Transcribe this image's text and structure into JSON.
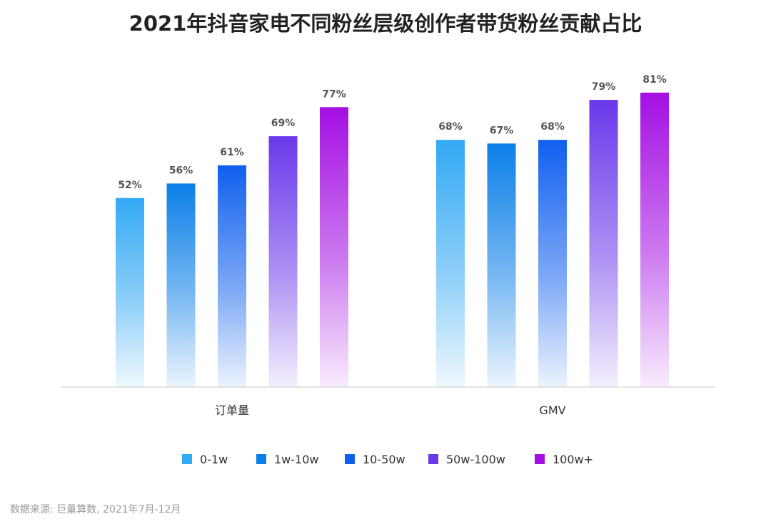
{
  "chart_data": {
    "type": "bar",
    "title": "2021年抖音家电不同粉丝层级创作者带货粉丝贡献占比",
    "categories": [
      "订单量",
      "GMV"
    ],
    "series": [
      {
        "name": "0-1w",
        "values": [
          52,
          68
        ],
        "labels": [
          "52%",
          "68%"
        ],
        "color": "#33A9F4"
      },
      {
        "name": "1w-10w",
        "values": [
          56,
          67
        ],
        "labels": [
          "56%",
          "67%"
        ],
        "color": "#0B7FE8"
      },
      {
        "name": "10-50w",
        "values": [
          61,
          68
        ],
        "labels": [
          "61%",
          "68%"
        ],
        "color": "#1060EE"
      },
      {
        "name": "50w-100w",
        "values": [
          69,
          79
        ],
        "labels": [
          "69%",
          "79%"
        ],
        "color": "#6A38EA"
      },
      {
        "name": "100w+",
        "values": [
          77,
          81
        ],
        "labels": [
          "77%",
          "81%"
        ],
        "color": "#A40FE3"
      }
    ],
    "ylim": [
      0,
      100
    ],
    "legend_position": "bottom",
    "grid": false
  },
  "source": "数据来源: 巨量算数, 2021年7月-12月"
}
